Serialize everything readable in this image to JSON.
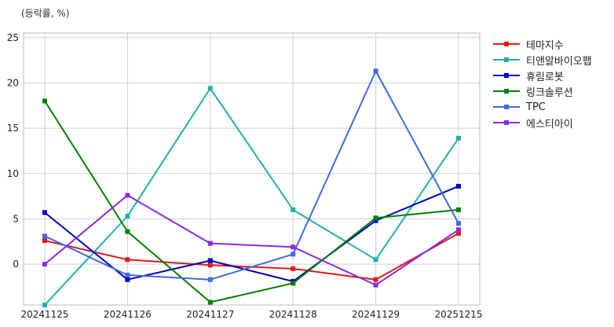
{
  "unit_label": "(등락률, %)",
  "chart_data": {
    "type": "line",
    "categories": [
      "20241125",
      "20241126",
      "20241127",
      "20241128",
      "20241129",
      "20251215"
    ],
    "ylim": [
      -4.5,
      25.5
    ],
    "yticks": [
      0,
      5,
      10,
      15,
      20,
      25
    ],
    "grid": true,
    "legend_position": "right-top",
    "series": [
      {
        "name": "테마지수",
        "color": "#e31a1c",
        "values": [
          2.6,
          0.5,
          -0.1,
          -0.5,
          -1.7,
          3.4
        ]
      },
      {
        "name": "티앤알바이오팹",
        "color": "#20b2aa",
        "values": [
          -4.5,
          5.3,
          19.4,
          6.0,
          0.5,
          13.9
        ]
      },
      {
        "name": "휴림로봇",
        "color": "#0000cd",
        "values": [
          5.7,
          -1.7,
          0.4,
          -1.9,
          4.8,
          8.6
        ]
      },
      {
        "name": "링크솔루션",
        "color": "#008000",
        "values": [
          18.0,
          3.6,
          -4.2,
          -2.1,
          5.1,
          6.0
        ]
      },
      {
        "name": "TPC",
        "color": "#4169e1",
        "values": [
          3.1,
          -1.2,
          -1.7,
          1.1,
          21.3,
          4.5
        ]
      },
      {
        "name": "에스티아이",
        "color": "#8a2be2",
        "values": [
          0.0,
          7.6,
          2.3,
          1.9,
          -2.3,
          3.8
        ]
      }
    ]
  }
}
